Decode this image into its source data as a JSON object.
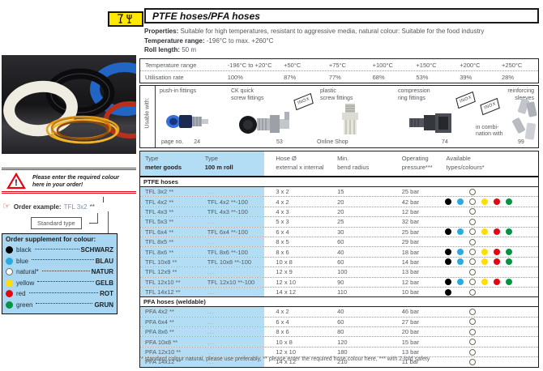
{
  "page": {
    "title": "PTFE hoses/PFA hoses",
    "footnote": "* standard colour natural, please use preferably, ** please enter the required hose colour here, *** with 2-fold safety"
  },
  "properties": {
    "line1_label": "Properties:",
    "line1_text": " Suitable for high temperatures, resistant to aggressive media, natural colour: Suitable for the food industry",
    "line2_label": "Temperature range:",
    "line2_text": " -196°C to max. +260°C",
    "line3_label": "Roll length:",
    "line3_text": " 50 m"
  },
  "temperature_table": {
    "rows": [
      {
        "label": "Temperature range",
        "values": [
          "-196°C to +20°C",
          "+50°C",
          "+75°C",
          "+100°C",
          "+150°C",
          "+200°C",
          "+250°C"
        ]
      },
      {
        "label": "Utilisation rate",
        "values": [
          "100%",
          "87%",
          "77%",
          "68%",
          "53%",
          "39%",
          "28%"
        ]
      }
    ]
  },
  "usable_with": {
    "label": "Usable with:",
    "inox_label": "INOX",
    "items": [
      {
        "line1": "push-in fittings",
        "line2": "",
        "ref_label": "page no.",
        "ref_value": "24"
      },
      {
        "line1": "CK quick",
        "line2": "screw fittings",
        "ref_label": "",
        "ref_value": "53"
      },
      {
        "line1": "plastic",
        "line2": "screw fittings",
        "ref_label": "",
        "ref_value": "Online Shop"
      },
      {
        "line1": "compression",
        "line2": "ring fittings",
        "ref_label": "",
        "ref_value": "74"
      },
      {
        "line1": "reinforcing",
        "line2": "sleeves",
        "note1": "in combi-",
        "note2": "nation with",
        "ref_label": "",
        "ref_value": "99"
      }
    ]
  },
  "left_panel": {
    "warning_line1": "Please enter the required colour",
    "warning_line2": "here in your order!",
    "warning_mark": "!",
    "order_example_label": "Order example:",
    "order_example_value": "TFL 3x2",
    "order_example_suffix": "**",
    "standard_type_label": "Standard type",
    "colour_box": {
      "title": "Order supplement for colour:",
      "rows": [
        {
          "colour": "black",
          "eng": "black",
          "ger": "SCHWARZ"
        },
        {
          "colour": "blue",
          "eng": "blue",
          "ger": "BLAU"
        },
        {
          "colour": "natural",
          "eng": "natural*",
          "ger": "NATUR"
        },
        {
          "colour": "yellow",
          "eng": "yellow",
          "ger": "GELB"
        },
        {
          "colour": "red",
          "eng": "red",
          "ger": "ROT"
        },
        {
          "colour": "green",
          "eng": "green",
          "ger": "GRUN"
        }
      ]
    }
  },
  "colour_hex": {
    "black": "#000000",
    "blue": "#29abe2",
    "natural": "#ffffff",
    "yellow": "#ffde00",
    "red": "#e30613",
    "green": "#009640",
    "cell_blue": "#b3ddf4",
    "box_blue": "#a9d7f2",
    "accent_yellow": "#ffe800",
    "warning_red": "#e30613"
  },
  "main_table": {
    "headers": [
      {
        "line1": "Type",
        "line2": "meter goods"
      },
      {
        "line1": "Type",
        "line2": "100 m roll"
      },
      {
        "line1": "Hose Ø",
        "line2": "external x internal"
      },
      {
        "line1": "Min.",
        "line2": "bend radius"
      },
      {
        "line1": "Operating",
        "line2": "pressure***"
      },
      {
        "line1": "Available",
        "line2": "types/colours*"
      }
    ],
    "sections": [
      {
        "title": "PTFE hoses",
        "rows": [
          {
            "type_meter": "TFL 3x2 **",
            "type_roll": "...",
            "hose": "3 x 2",
            "bend": "15",
            "pressure": "25 bar",
            "colours": [
              "gap",
              "gap",
              "natural"
            ]
          },
          {
            "type_meter": "TFL 4x2 **",
            "type_roll": "TFL 4x2 **-100",
            "hose": "4 x 2",
            "bend": "20",
            "pressure": "42 bar",
            "colours": [
              "black",
              "blue",
              "natural",
              "yellow",
              "red",
              "green"
            ]
          },
          {
            "type_meter": "TFL 4x3 **",
            "type_roll": "TFL 4x3 **-100",
            "hose": "4 x 3",
            "bend": "20",
            "pressure": "12 bar",
            "colours": [
              "gap",
              "gap",
              "natural"
            ]
          },
          {
            "type_meter": "TFL 5x3 **",
            "type_roll": "...",
            "hose": "5 x 3",
            "bend": "25",
            "pressure": "32 bar",
            "colours": [
              "gap",
              "gap",
              "natural"
            ]
          },
          {
            "type_meter": "TFL 6x4 **",
            "type_roll": "TFL 6x4 **-100",
            "hose": "6 x 4",
            "bend": "30",
            "pressure": "25 bar",
            "colours": [
              "black",
              "blue",
              "natural",
              "yellow",
              "red",
              "green"
            ]
          },
          {
            "type_meter": "TFL 8x5 **",
            "type_roll": "...",
            "hose": "8 x 5",
            "bend": "60",
            "pressure": "29 bar",
            "colours": [
              "gap",
              "gap",
              "natural"
            ]
          },
          {
            "type_meter": "TFL 8x6 **",
            "type_roll": "TFL 8x6 **-100",
            "hose": "8 x 6",
            "bend": "40",
            "pressure": "18 bar",
            "colours": [
              "black",
              "blue",
              "natural",
              "yellow",
              "red",
              "green"
            ]
          },
          {
            "type_meter": "TFL 10x8 **",
            "type_roll": "TFL 10x8 **-100",
            "hose": "10 x 8",
            "bend": "60",
            "pressure": "14 bar",
            "colours": [
              "black",
              "blue",
              "natural",
              "yellow",
              "red",
              "green"
            ]
          },
          {
            "type_meter": "TFL 12x9 **",
            "type_roll": "...",
            "hose": "12 x 9",
            "bend": "100",
            "pressure": "13 bar",
            "colours": [
              "gap",
              "gap",
              "natural"
            ]
          },
          {
            "type_meter": "TFL 12x10 **",
            "type_roll": "TFL 12x10 **-100",
            "hose": "12 x 10",
            "bend": "90",
            "pressure": "12 bar",
            "colours": [
              "black",
              "blue",
              "natural",
              "yellow",
              "red",
              "green"
            ]
          },
          {
            "type_meter": "TFL 14x12 **",
            "type_roll": "...",
            "hose": "14 x 12",
            "bend": "110",
            "pressure": "10 bar",
            "colours": [
              "black",
              "gap",
              "natural"
            ]
          }
        ]
      },
      {
        "title": "PFA hoses (weldable)",
        "rows": [
          {
            "type_meter": "PFA 4x2 **",
            "type_roll": "...",
            "hose": "4 x 2",
            "bend": "40",
            "pressure": "46 bar",
            "colours": [
              "gap",
              "gap",
              "natural"
            ]
          },
          {
            "type_meter": "PFA 6x4 **",
            "type_roll": "...",
            "hose": "6 x 4",
            "bend": "60",
            "pressure": "27 bar",
            "colours": [
              "gap",
              "gap",
              "natural"
            ]
          },
          {
            "type_meter": "PFA 8x6 **",
            "type_roll": "...",
            "hose": "8 x 6",
            "bend": "80",
            "pressure": "20 bar",
            "colours": [
              "gap",
              "gap",
              "natural"
            ]
          },
          {
            "type_meter": "PFA 10x8 **",
            "type_roll": "...",
            "hose": "10 x 8",
            "bend": "120",
            "pressure": "15 bar",
            "colours": [
              "gap",
              "gap",
              "natural"
            ]
          },
          {
            "type_meter": "PFA 12x10 **",
            "type_roll": "...",
            "hose": "12 x 10",
            "bend": "180",
            "pressure": "13 bar",
            "colours": [
              "gap",
              "gap",
              "natural"
            ]
          },
          {
            "type_meter": "PFA 14x12 **",
            "type_roll": "...",
            "hose": "14 x 12",
            "bend": "210",
            "pressure": "11 bar",
            "colours": [
              "gap",
              "gap",
              "natural"
            ]
          }
        ]
      }
    ]
  }
}
